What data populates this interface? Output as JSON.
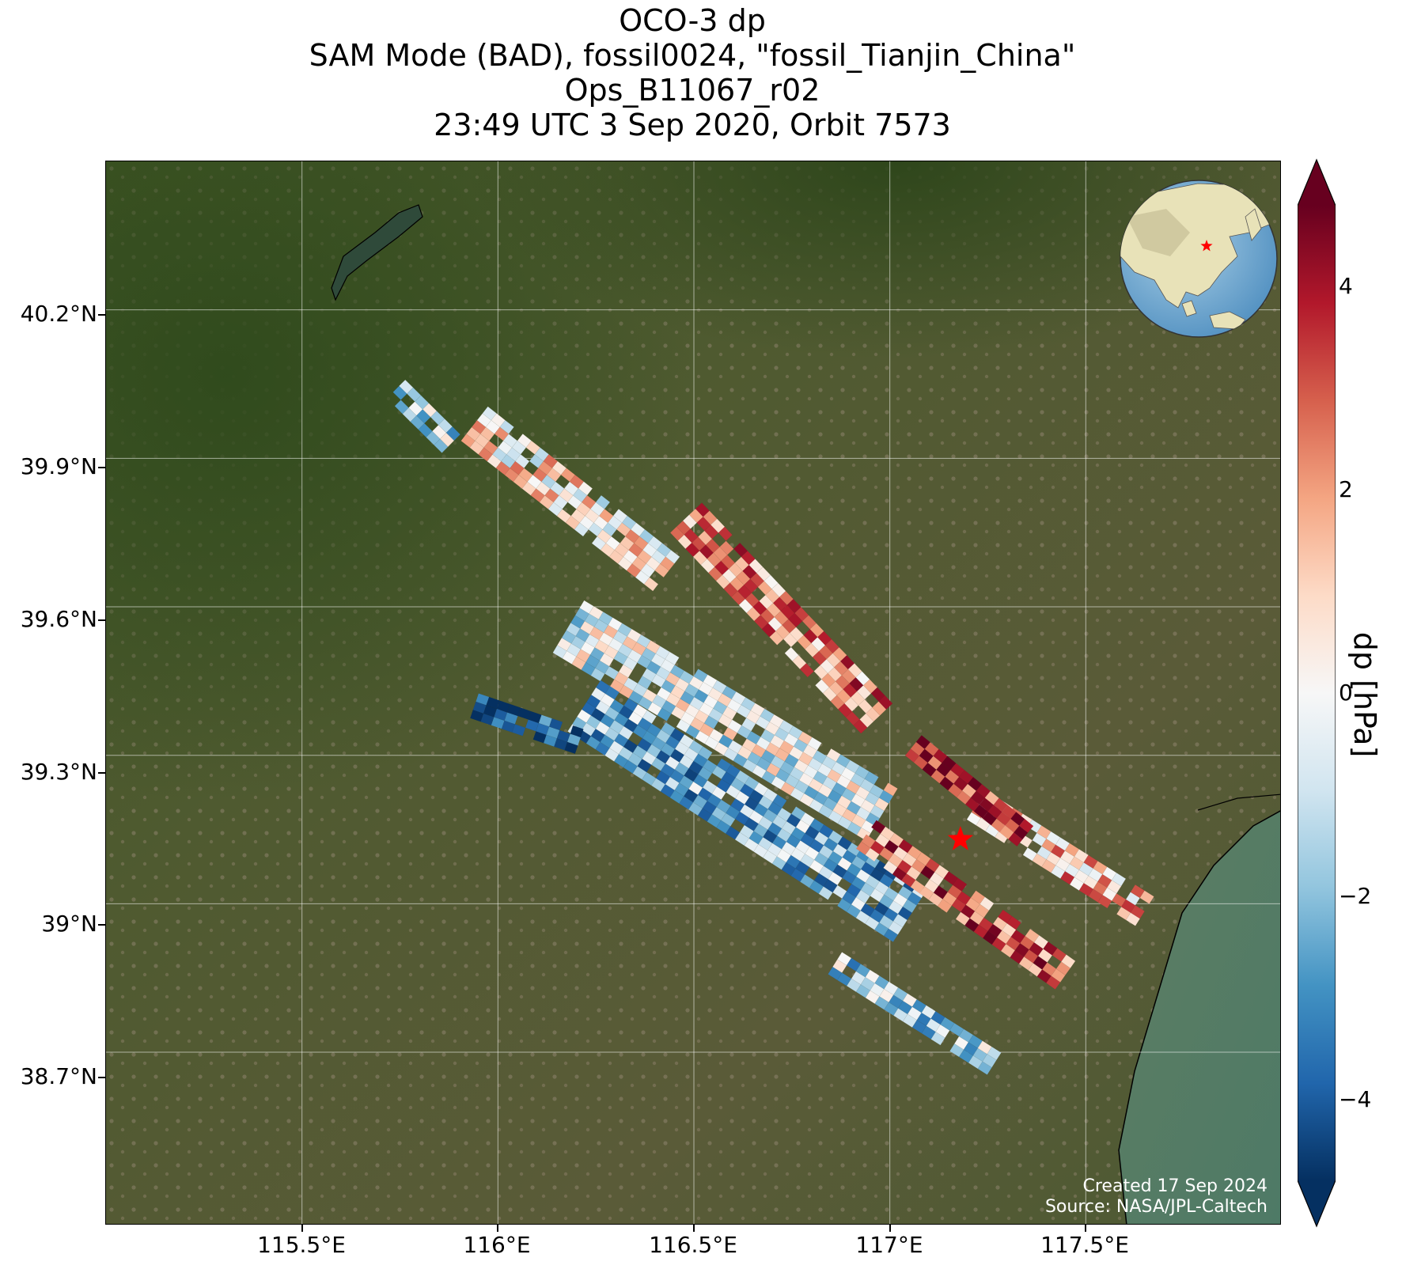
{
  "title": {
    "line1": "OCO-3 dp",
    "line2": "SAM Mode (BAD), fossil0024, \"fossil_Tianjin_China\"",
    "line3": "Ops_B11067_r02",
    "line4": "23:49 UTC 3 Sep 2020, Orbit 7573"
  },
  "map": {
    "lon_range": [
      115.0,
      118.0
    ],
    "lat_range": [
      38.35,
      40.5
    ],
    "lon_ticks": [
      115.5,
      116.0,
      116.5,
      117.0,
      117.5
    ],
    "lon_tick_labels": [
      "115.5°E",
      "116°E",
      "116.5°E",
      "117°E",
      "117.5°E"
    ],
    "lat_ticks": [
      40.2,
      39.9,
      39.6,
      39.3,
      39.0,
      38.7
    ],
    "lat_tick_labels": [
      "40.2°N",
      "39.9°N",
      "39.6°N",
      "39.3°N",
      "39°N",
      "38.7°N"
    ],
    "gridlines": true,
    "background": "satellite imagery",
    "target_marker": {
      "lon": 117.18,
      "lat": 39.13,
      "shape": "star",
      "color": "#ff0000"
    },
    "inset_globe": {
      "placement": "top-right",
      "marker_color": "#ff0000"
    },
    "credit_line1": "Created 17 Sep 2024",
    "credit_line2": "Source: NASA/JPL-Caltech"
  },
  "colorbar": {
    "label": "dp [hPa]",
    "colormap": "RdBu_r",
    "range": [
      -4.8,
      4.8
    ],
    "ticks": [
      4,
      2,
      0,
      -2,
      -4
    ],
    "tick_labels": [
      "4",
      "2",
      "0",
      "−2",
      "−4"
    ],
    "extend": "both",
    "stops": [
      "#053061",
      "#2166ac",
      "#4393c3",
      "#92c5de",
      "#d1e5f0",
      "#f7f7f7",
      "#fddbc7",
      "#f4a582",
      "#d6604d",
      "#b2182b",
      "#67001f"
    ]
  },
  "chart_data": {
    "type": "heatmap",
    "title": "OCO-3 dp",
    "xlabel": "",
    "ylabel": "",
    "value_label": "dp [hPa]",
    "value_range": [
      -4.8,
      4.8
    ],
    "footprint_swaths": [
      {
        "lon_start": 115.74,
        "lat_start": 40.04,
        "lon_end": 115.88,
        "lat_end": 39.93,
        "mean_dp": -1.5
      },
      {
        "lon_start": 115.94,
        "lat_start": 39.97,
        "lon_end": 116.44,
        "lat_end": 39.66,
        "mean_dp": 0.5
      },
      {
        "lon_start": 116.48,
        "lat_start": 39.78,
        "lon_end": 116.96,
        "lat_end": 39.38,
        "mean_dp": 2.2
      },
      {
        "lon_start": 116.18,
        "lat_start": 39.56,
        "lon_end": 116.98,
        "lat_end": 39.18,
        "mean_dp": -0.5
      },
      {
        "lon_start": 116.22,
        "lat_start": 39.4,
        "lon_end": 117.04,
        "lat_end": 38.98,
        "mean_dp": -2.2
      },
      {
        "lon_start": 115.94,
        "lat_start": 39.4,
        "lon_end": 116.2,
        "lat_end": 39.33,
        "mean_dp": -4.6
      },
      {
        "lon_start": 116.94,
        "lat_start": 39.14,
        "lon_end": 117.44,
        "lat_end": 38.86,
        "mean_dp": 2.8
      },
      {
        "lon_start": 116.86,
        "lat_start": 38.88,
        "lon_end": 117.26,
        "lat_end": 38.68,
        "mean_dp": -1.6
      },
      {
        "lon_start": 117.22,
        "lat_start": 39.2,
        "lon_end": 117.66,
        "lat_end": 38.98,
        "mean_dp": 1.4
      },
      {
        "lon_start": 117.06,
        "lat_start": 39.32,
        "lon_end": 117.34,
        "lat_end": 39.14,
        "mean_dp": 3.8
      }
    ]
  }
}
